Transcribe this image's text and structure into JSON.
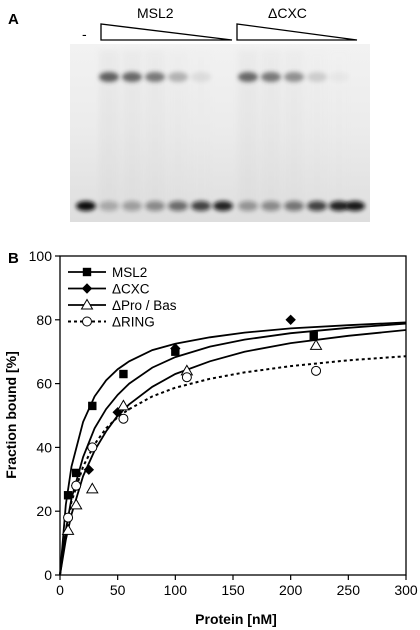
{
  "panel_a": {
    "label": "A",
    "minus_label": "-",
    "group_labels": [
      "MSL2",
      "ΔCXC"
    ]
  },
  "panel_b": {
    "label": "B"
  },
  "chart_data": {
    "type": "line",
    "title": "",
    "xlabel": "Protein [nM]",
    "ylabel": "Fraction bound [%]",
    "xlim": [
      0,
      300
    ],
    "ylim": [
      0,
      100
    ],
    "xticks": [
      0,
      50,
      100,
      150,
      200,
      250,
      300
    ],
    "yticks": [
      0,
      20,
      40,
      60,
      80,
      100
    ],
    "grid": false,
    "legend": "top-left",
    "series": [
      {
        "name": "MSL2",
        "marker": "filled-square",
        "line": "solid",
        "points": [
          [
            7,
            25
          ],
          [
            14,
            32
          ],
          [
            28,
            53
          ],
          [
            55,
            63
          ],
          [
            100,
            70
          ],
          [
            220,
            75
          ]
        ],
        "fit": [
          [
            0,
            0
          ],
          [
            5,
            22
          ],
          [
            10,
            34
          ],
          [
            20,
            48
          ],
          [
            30,
            56
          ],
          [
            40,
            61
          ],
          [
            50,
            64.5
          ],
          [
            60,
            67
          ],
          [
            80,
            70.5
          ],
          [
            100,
            72.5
          ],
          [
            130,
            74.5
          ],
          [
            160,
            76
          ],
          [
            200,
            77.3
          ],
          [
            250,
            78.3
          ],
          [
            300,
            79.2
          ]
        ]
      },
      {
        "name": "ΔCXC",
        "marker": "filled-diamond",
        "line": "solid",
        "points": [
          [
            14,
            28
          ],
          [
            25,
            33
          ],
          [
            50,
            51
          ],
          [
            100,
            71
          ],
          [
            200,
            80
          ]
        ],
        "fit": [
          [
            0,
            0
          ],
          [
            5,
            14
          ],
          [
            10,
            24
          ],
          [
            20,
            37
          ],
          [
            30,
            46
          ],
          [
            40,
            52
          ],
          [
            50,
            56.5
          ],
          [
            60,
            60
          ],
          [
            80,
            65
          ],
          [
            100,
            68.3
          ],
          [
            130,
            71.6
          ],
          [
            160,
            73.8
          ],
          [
            200,
            75.8
          ],
          [
            250,
            77.5
          ],
          [
            300,
            78.8
          ]
        ]
      },
      {
        "name": "ΔPro / Bas",
        "marker": "open-triangle",
        "line": "solid",
        "points": [
          [
            7,
            14
          ],
          [
            14,
            22
          ],
          [
            28,
            27
          ],
          [
            55,
            53
          ],
          [
            110,
            64
          ],
          [
            222,
            72
          ]
        ],
        "fit": [
          [
            0,
            0
          ],
          [
            5,
            11
          ],
          [
            10,
            19
          ],
          [
            20,
            31
          ],
          [
            30,
            39
          ],
          [
            40,
            45
          ],
          [
            50,
            50
          ],
          [
            60,
            53.5
          ],
          [
            80,
            59
          ],
          [
            100,
            63
          ],
          [
            130,
            67
          ],
          [
            160,
            70
          ],
          [
            200,
            72.7
          ],
          [
            250,
            75
          ],
          [
            300,
            76.8
          ]
        ]
      },
      {
        "name": "ΔRING",
        "marker": "open-circle",
        "line": "dotted",
        "points": [
          [
            7,
            18
          ],
          [
            14,
            28
          ],
          [
            28,
            40
          ],
          [
            55,
            49
          ],
          [
            110,
            62
          ],
          [
            222,
            64
          ]
        ],
        "fit": [
          [
            0,
            0
          ],
          [
            5,
            14
          ],
          [
            10,
            23
          ],
          [
            20,
            34
          ],
          [
            30,
            41
          ],
          [
            40,
            46
          ],
          [
            50,
            49.5
          ],
          [
            60,
            52
          ],
          [
            80,
            56
          ],
          [
            100,
            58.7
          ],
          [
            130,
            61.5
          ],
          [
            160,
            63.5
          ],
          [
            200,
            65.5
          ],
          [
            250,
            67.3
          ],
          [
            300,
            68.6
          ]
        ]
      }
    ]
  }
}
